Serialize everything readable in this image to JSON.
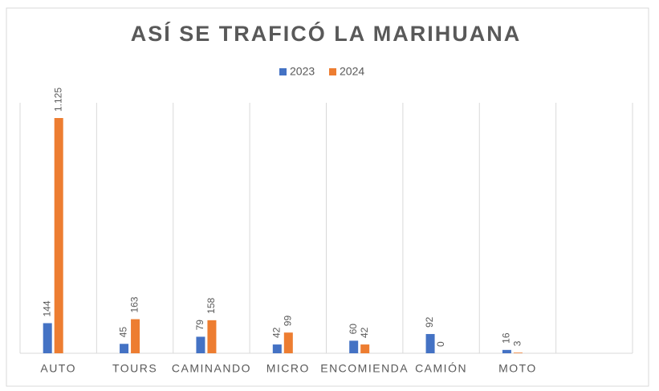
{
  "chart_data": {
    "type": "bar",
    "title": "ASÍ SE TRAFICÓ LA MARIHUANA",
    "categories": [
      "AUTO",
      "TOURS",
      "CAMINANDO",
      "MICRO",
      "ENCOMIENDA",
      "CAMIÓN",
      "MOTO",
      null
    ],
    "series": [
      {
        "name": "2023",
        "color": "#4472c4",
        "values": [
          144,
          45,
          79,
          42,
          60,
          92,
          16,
          null
        ]
      },
      {
        "name": "2024",
        "color": "#ed7d31",
        "values": [
          1125,
          163,
          158,
          99,
          42,
          0,
          3,
          null
        ],
        "value_labels": [
          "1.125",
          "163",
          "158",
          "99",
          "42",
          "0",
          "3",
          null
        ]
      }
    ],
    "legend": "top",
    "grid": "vertical"
  }
}
